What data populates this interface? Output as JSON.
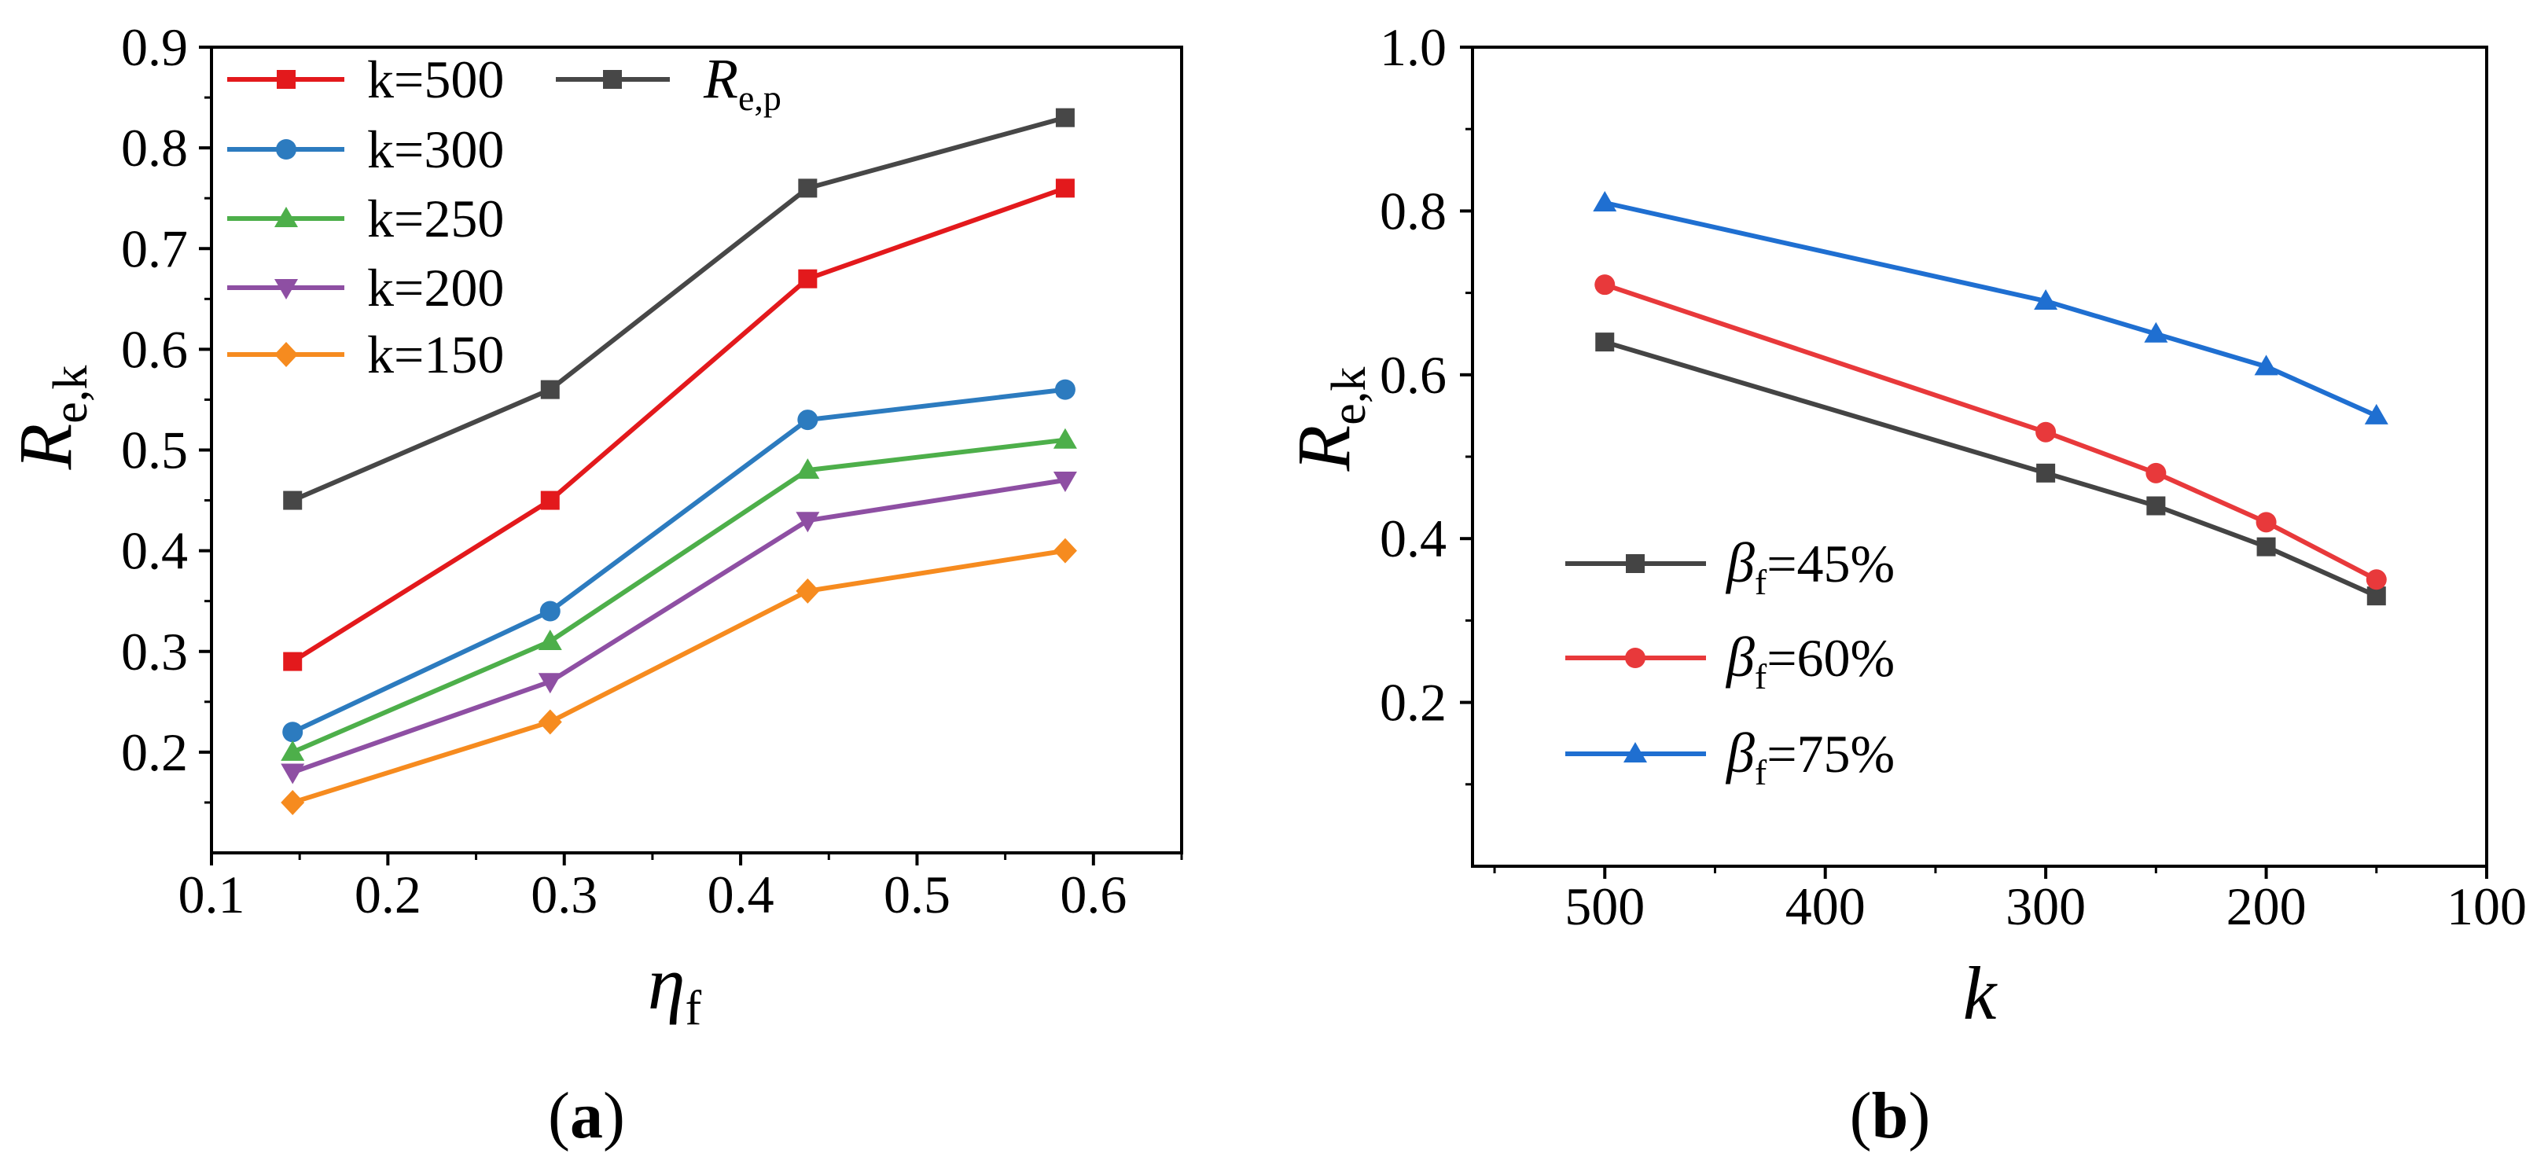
{
  "chart_data": [
    {
      "type": "line",
      "caption": [
        {
          "text": "("
        },
        {
          "bold": "a"
        },
        {
          "text": ")"
        }
      ],
      "xlabel": [
        {
          "italic": "η"
        },
        {
          "sub": "f"
        }
      ],
      "ylabel": [
        {
          "italic": "R"
        },
        {
          "sub": "e,k"
        }
      ],
      "xlim": [
        0.1,
        0.65
      ],
      "ylim": [
        0.1,
        0.9
      ],
      "xticks": [
        0.1,
        0.2,
        0.3,
        0.4,
        0.5,
        0.6
      ],
      "xtick_labels": [
        "0.1",
        "0.2",
        "0.3",
        "0.4",
        "0.5",
        "0.6"
      ],
      "yticks": [
        0.2,
        0.3,
        0.4,
        0.5,
        0.6,
        0.7,
        0.8,
        0.9
      ],
      "ytick_labels": [
        "0.2",
        "0.3",
        "0.4",
        "0.5",
        "0.6",
        "0.7",
        "0.8",
        "0.9"
      ],
      "grid": false,
      "legend_position": "top-left",
      "x": [
        0.146,
        0.292,
        0.438,
        0.584
      ],
      "series": [
        {
          "label": [
            {
              "text": "k=500"
            }
          ],
          "color": "#e3191c",
          "marker": "square",
          "values": [
            0.29,
            0.45,
            0.67,
            0.76
          ]
        },
        {
          "label": [
            {
              "text": "k=300"
            }
          ],
          "color": "#2c7bbf",
          "marker": "circle",
          "values": [
            0.22,
            0.34,
            0.53,
            0.56
          ]
        },
        {
          "label": [
            {
              "text": "k=250"
            }
          ],
          "color": "#4daf4a",
          "marker": "triangle-up",
          "values": [
            0.2,
            0.31,
            0.48,
            0.51
          ]
        },
        {
          "label": [
            {
              "text": "k=200"
            }
          ],
          "color": "#8e4fa3",
          "marker": "triangle-down",
          "values": [
            0.18,
            0.27,
            0.43,
            0.47
          ]
        },
        {
          "label": [
            {
              "text": "k=150"
            }
          ],
          "color": "#f68b1f",
          "marker": "diamond",
          "values": [
            0.15,
            0.23,
            0.36,
            0.4
          ]
        },
        {
          "label": [
            {
              "italic": "R"
            },
            {
              "sub": "e,p"
            }
          ],
          "color": "#474747",
          "marker": "square",
          "values": [
            0.45,
            0.56,
            0.76,
            0.83
          ]
        }
      ]
    },
    {
      "type": "line",
      "caption": [
        {
          "text": "("
        },
        {
          "bold": "b"
        },
        {
          "text": ")"
        }
      ],
      "xlabel": [
        {
          "italic": "k"
        }
      ],
      "ylabel": [
        {
          "italic": "R"
        },
        {
          "sub": "e,k"
        }
      ],
      "xlim": [
        560,
        100
      ],
      "ylim": [
        0.0,
        1.0
      ],
      "xticks": [
        500,
        400,
        300,
        200,
        100
      ],
      "xtick_labels": [
        "500",
        "400",
        "300",
        "200",
        "100"
      ],
      "yticks": [
        0.2,
        0.4,
        0.6,
        0.8,
        1.0
      ],
      "ytick_labels": [
        "0.2",
        "0.4",
        "0.6",
        "0.8",
        "1.0"
      ],
      "grid": false,
      "legend_position": "bottom-left",
      "x": [
        500,
        300,
        250,
        200,
        150
      ],
      "series": [
        {
          "label": [
            {
              "italic": "β"
            },
            {
              "sub": "f"
            },
            {
              "text": "=45%"
            }
          ],
          "color": "#444444",
          "marker": "square",
          "values": [
            0.64,
            0.48,
            0.44,
            0.39,
            0.33
          ]
        },
        {
          "label": [
            {
              "italic": "β"
            },
            {
              "sub": "f"
            },
            {
              "text": "=60%"
            }
          ],
          "color": "#e8393b",
          "marker": "circle",
          "values": [
            0.71,
            0.53,
            0.48,
            0.42,
            0.35
          ]
        },
        {
          "label": [
            {
              "italic": "β"
            },
            {
              "sub": "f"
            },
            {
              "text": "=75%"
            }
          ],
          "color": "#1f6fd1",
          "marker": "triangle-up",
          "values": [
            0.81,
            0.69,
            0.65,
            0.61,
            0.55
          ]
        }
      ]
    }
  ]
}
